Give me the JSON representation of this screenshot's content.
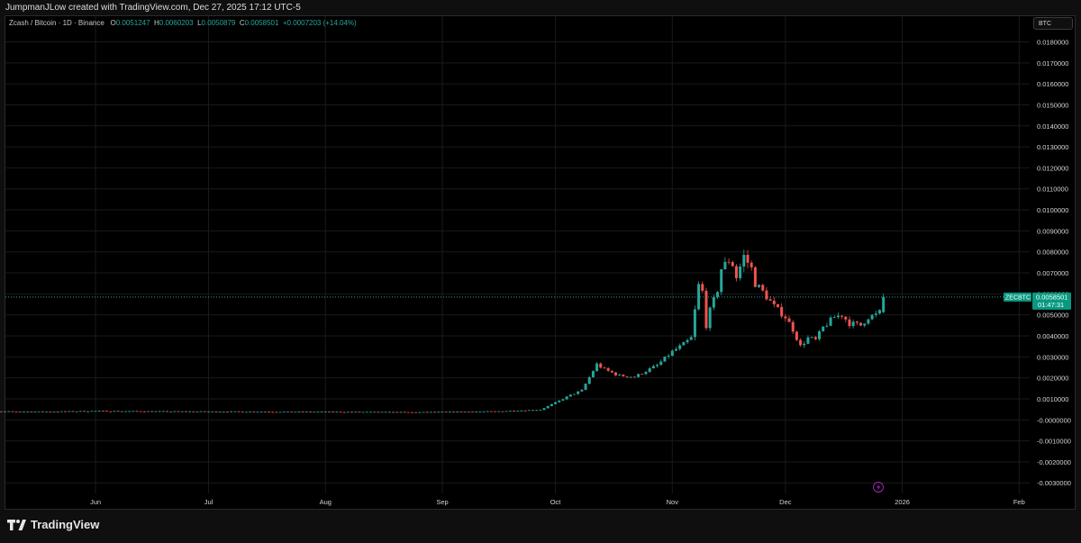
{
  "header": {
    "attribution": "JumpmanJLow created with TradingView.com, Dec 27, 2025 17:12 UTC-5"
  },
  "legend": {
    "symbol_title": "Zcash / Bitcoin · 1D · Binance",
    "open_label": "O",
    "open_value": "0.0051247",
    "high_label": "H",
    "high_value": "0.0060203",
    "low_label": "L",
    "low_value": "0.0050879",
    "close_label": "C",
    "close_value": "0.0058501",
    "change": "+0.0007203 (+14.04%)"
  },
  "currency_button": "BTC",
  "price_tag": {
    "symbol": "ZECBTC",
    "price": "0.0058501",
    "countdown": "01:47:31"
  },
  "footer": {
    "brand": "TradingView"
  },
  "colors": {
    "up": "#26a69a",
    "down": "#ef5350",
    "grid": "#1a1a1a",
    "axis_text": "#d1d4dc",
    "tag_bg": "#089981",
    "lightning": "#9c27b0"
  },
  "icons": {
    "lightning": "lightning-icon",
    "logo": "tradingview-logo-icon"
  },
  "chart_data": {
    "type": "candlestick",
    "title": "Zcash / Bitcoin · 1D · Binance",
    "symbol": "ZECBTC",
    "interval": "1D",
    "currency": "BTC",
    "ylim": [
      -0.0033,
      0.0188
    ],
    "y_ticks": [
      "0.0180000",
      "0.0170000",
      "0.0160000",
      "0.0150000",
      "0.0140000",
      "0.0130000",
      "0.0120000",
      "0.0110000",
      "0.0100000",
      "0.0090000",
      "0.0080000",
      "0.0070000",
      "0.0060000",
      "0.0050000",
      "0.0040000",
      "0.0030000",
      "0.0020000",
      "0.0010000",
      "-0.0000000",
      "-0.0010000",
      "-0.0020000",
      "-0.0030000"
    ],
    "y_tick_values": [
      0.018,
      0.017,
      0.016,
      0.015,
      0.014,
      0.013,
      0.012,
      0.011,
      0.01,
      0.009,
      0.008,
      0.007,
      0.006,
      0.005,
      0.004,
      0.003,
      0.002,
      0.001,
      0.0,
      -0.001,
      -0.002,
      -0.003
    ],
    "x_ticks": [
      "Jun",
      "Jul",
      "Aug",
      "Sep",
      "Oct",
      "Nov",
      "Dec",
      "2026",
      "Feb"
    ],
    "x_tick_dates": [
      "2025-06-01",
      "2025-07-01",
      "2025-08-01",
      "2025-09-01",
      "2025-10-01",
      "2025-11-01",
      "2025-12-01",
      "2026-01-01",
      "2026-02-01"
    ],
    "last_price": 0.0058501,
    "grid": true,
    "price_path": [
      [
        "2025-05-01",
        0.0004
      ],
      [
        "2025-05-20",
        0.00039
      ],
      [
        "2025-06-01",
        0.00042
      ],
      [
        "2025-06-20",
        0.0004
      ],
      [
        "2025-07-10",
        0.00039
      ],
      [
        "2025-08-01",
        0.00038
      ],
      [
        "2025-08-25",
        0.00036
      ],
      [
        "2025-09-15",
        0.0004
      ],
      [
        "2025-09-27",
        0.00048
      ],
      [
        "2025-10-01",
        0.00082
      ],
      [
        "2025-10-05",
        0.00118
      ],
      [
        "2025-10-08",
        0.0014
      ],
      [
        "2025-10-12",
        0.00265
      ],
      [
        "2025-10-14",
        0.0024
      ],
      [
        "2025-10-18",
        0.0021
      ],
      [
        "2025-10-22",
        0.00205
      ],
      [
        "2025-10-28",
        0.0026
      ],
      [
        "2025-11-01",
        0.00325
      ],
      [
        "2025-11-04",
        0.0036
      ],
      [
        "2025-11-06",
        0.0039
      ],
      [
        "2025-11-07",
        0.0052
      ],
      [
        "2025-11-08",
        0.0064
      ],
      [
        "2025-11-09",
        0.0061
      ],
      [
        "2025-11-10",
        0.0045
      ],
      [
        "2025-11-11",
        0.0052
      ],
      [
        "2025-11-13",
        0.0062
      ],
      [
        "2025-11-14",
        0.0072
      ],
      [
        "2025-11-16",
        0.0076
      ],
      [
        "2025-11-17",
        0.0074
      ],
      [
        "2025-11-18",
        0.0068
      ],
      [
        "2025-11-20",
        0.0078
      ],
      [
        "2025-11-22",
        0.0072
      ],
      [
        "2025-11-23",
        0.0065
      ],
      [
        "2025-11-25",
        0.0061
      ],
      [
        "2025-11-28",
        0.0054
      ],
      [
        "2025-12-01",
        0.0049
      ],
      [
        "2025-12-03",
        0.0043
      ],
      [
        "2025-12-05",
        0.0035
      ],
      [
        "2025-12-07",
        0.0039
      ],
      [
        "2025-12-09",
        0.0038
      ],
      [
        "2025-12-11",
        0.0044
      ],
      [
        "2025-12-14",
        0.0049
      ],
      [
        "2025-12-16",
        0.005
      ],
      [
        "2025-12-18",
        0.0046
      ],
      [
        "2025-12-21",
        0.0045
      ],
      [
        "2025-12-23",
        0.0049
      ],
      [
        "2025-12-25",
        0.005
      ],
      [
        "2025-12-26",
        0.00512
      ],
      [
        "2025-12-27",
        0.00585
      ]
    ]
  }
}
